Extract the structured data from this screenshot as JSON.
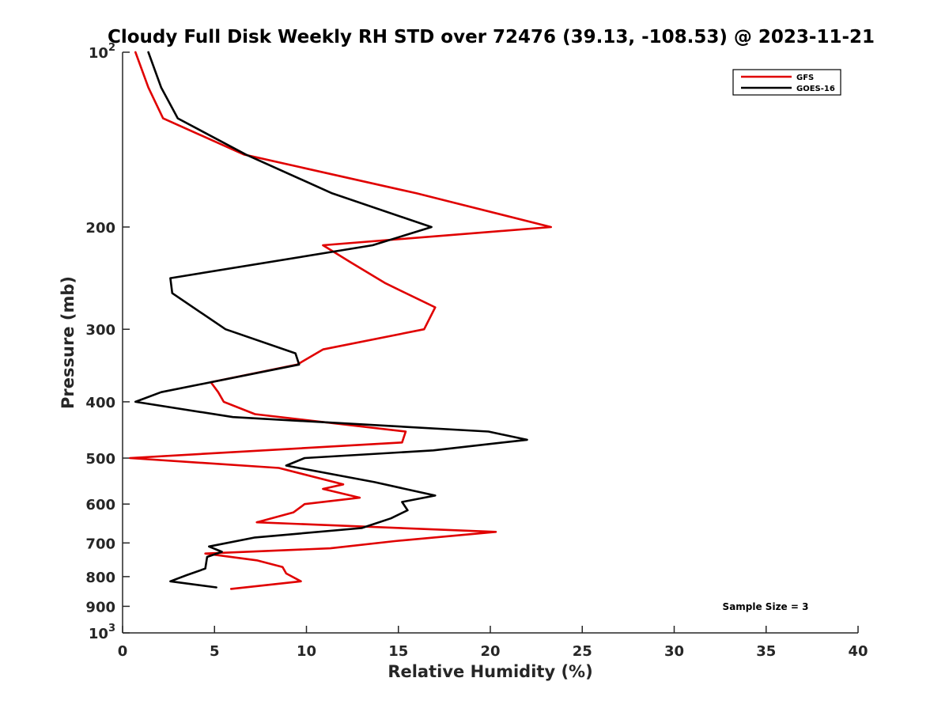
{
  "chart_data": {
    "type": "line",
    "title": "Cloudy Full Disk Weekly RH STD over 72476 (39.13, -108.53) @ 2023-11-21",
    "xlabel": "Relative Humidity (%)",
    "ylabel": "Pressure (mb)",
    "xlim": [
      0,
      40
    ],
    "ylim": [
      100,
      1000
    ],
    "yscale": "log",
    "y_reversed": true,
    "grid": false,
    "legend_position": "top-right",
    "x_ticks": [
      "0",
      "5",
      "10",
      "15",
      "20",
      "25",
      "30",
      "35",
      "40"
    ],
    "y_ticks": [
      {
        "value": 100,
        "base": "10",
        "exp": "2"
      },
      {
        "value": 200,
        "label": "200"
      },
      {
        "value": 300,
        "label": "300"
      },
      {
        "value": 400,
        "label": "400"
      },
      {
        "value": 500,
        "label": "500"
      },
      {
        "value": 600,
        "label": "600"
      },
      {
        "value": 700,
        "label": "700"
      },
      {
        "value": 800,
        "label": "800"
      },
      {
        "value": 900,
        "label": "900"
      },
      {
        "value": 1000,
        "base": "10",
        "exp": "3"
      }
    ],
    "annotation": "Sample Size = 3",
    "series": [
      {
        "name": "GFS",
        "color": "#e00000",
        "points": [
          [
            0.7,
            100
          ],
          [
            1.4,
            115
          ],
          [
            2.2,
            130
          ],
          [
            6.6,
            150
          ],
          [
            16.0,
            175
          ],
          [
            23.3,
            200
          ],
          [
            10.9,
            215
          ],
          [
            12.4,
            230
          ],
          [
            14.3,
            250
          ],
          [
            17.0,
            275
          ],
          [
            16.4,
            300
          ],
          [
            10.9,
            325
          ],
          [
            9.5,
            345
          ],
          [
            4.8,
            370
          ],
          [
            5.2,
            385
          ],
          [
            5.5,
            400
          ],
          [
            7.2,
            420
          ],
          [
            15.4,
            450
          ],
          [
            15.2,
            470
          ],
          [
            0.4,
            500
          ],
          [
            8.5,
            520
          ],
          [
            12.0,
            555
          ],
          [
            10.9,
            565
          ],
          [
            12.9,
            585
          ],
          [
            9.9,
            600
          ],
          [
            9.3,
            620
          ],
          [
            7.3,
            645
          ],
          [
            20.3,
            670
          ],
          [
            14.8,
            695
          ],
          [
            11.3,
            715
          ],
          [
            4.5,
            730
          ],
          [
            7.3,
            750
          ],
          [
            8.7,
            770
          ],
          [
            8.9,
            790
          ],
          [
            9.7,
            815
          ],
          [
            5.9,
            840
          ]
        ]
      },
      {
        "name": "GOES-16",
        "color": "#000000",
        "points": [
          [
            1.4,
            100
          ],
          [
            2.1,
            115
          ],
          [
            3.0,
            130
          ],
          [
            6.7,
            150
          ],
          [
            11.4,
            175
          ],
          [
            16.8,
            200
          ],
          [
            13.6,
            215
          ],
          [
            2.6,
            245
          ],
          [
            2.7,
            260
          ],
          [
            5.6,
            300
          ],
          [
            9.4,
            330
          ],
          [
            9.6,
            345
          ],
          [
            2.1,
            385
          ],
          [
            0.7,
            400
          ],
          [
            6.0,
            425
          ],
          [
            19.9,
            450
          ],
          [
            22.0,
            465
          ],
          [
            16.9,
            485
          ],
          [
            9.9,
            500
          ],
          [
            8.9,
            515
          ],
          [
            13.7,
            550
          ],
          [
            17.0,
            580
          ],
          [
            15.2,
            595
          ],
          [
            15.5,
            615
          ],
          [
            14.6,
            635
          ],
          [
            13.0,
            660
          ],
          [
            7.2,
            685
          ],
          [
            4.7,
            710
          ],
          [
            5.4,
            725
          ],
          [
            4.6,
            740
          ],
          [
            4.5,
            775
          ],
          [
            3.5,
            795
          ],
          [
            2.6,
            815
          ],
          [
            5.1,
            835
          ]
        ]
      }
    ]
  }
}
